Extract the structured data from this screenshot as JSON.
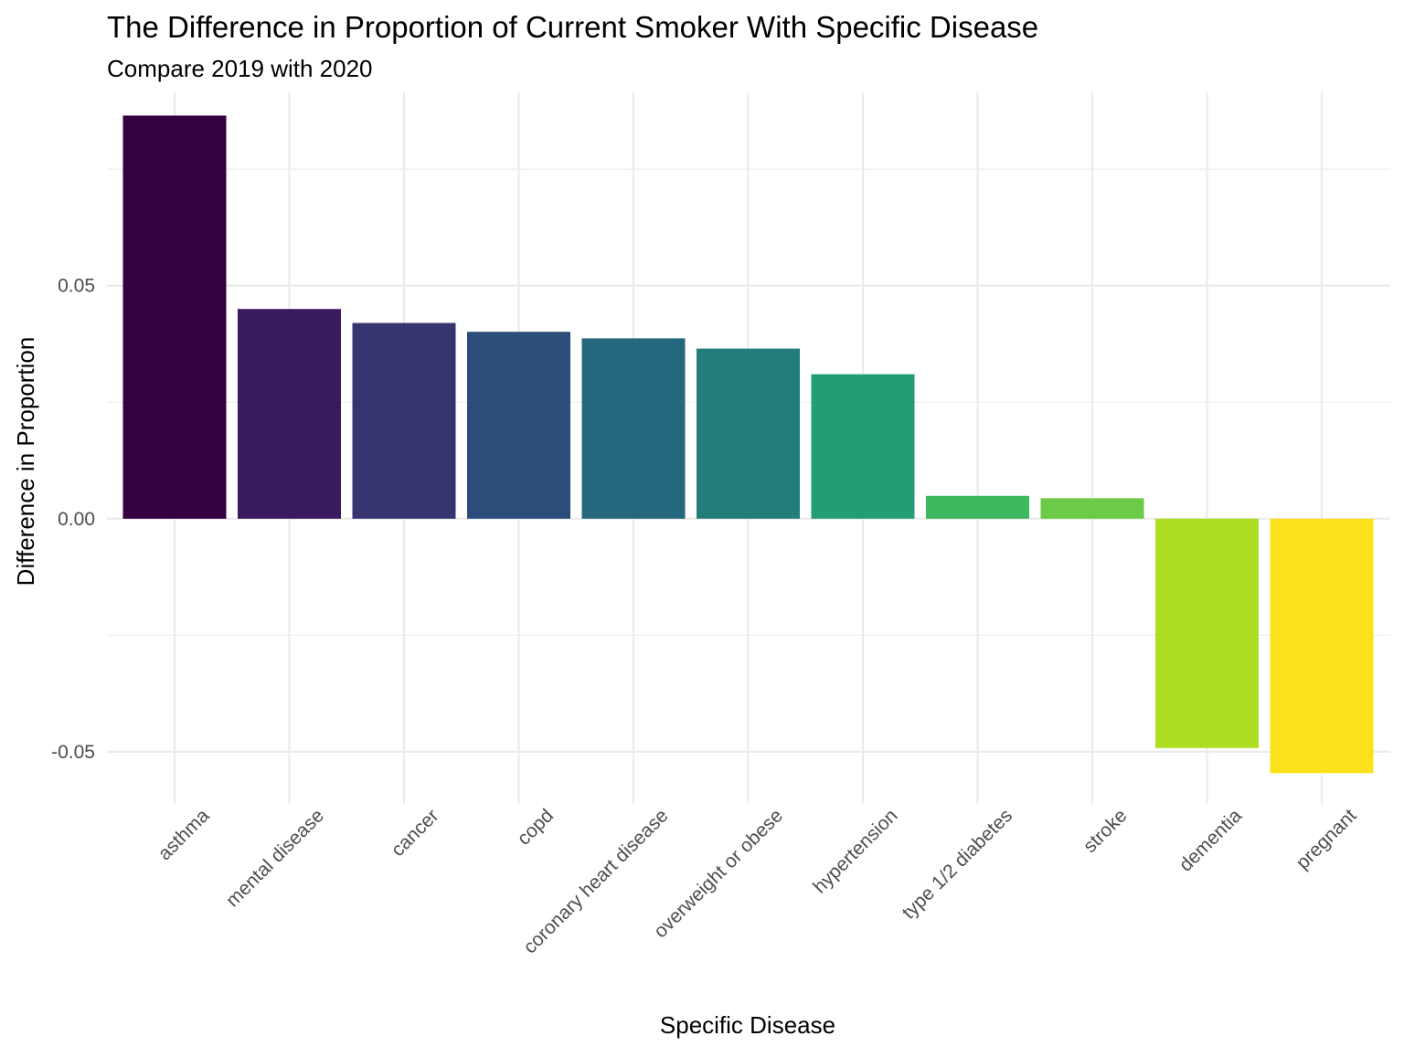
{
  "chart_data": {
    "type": "bar",
    "title": "The Difference in Proportion of Current Smoker With Specific Disease",
    "subtitle": "Compare 2019 with 2020",
    "xlabel": "Specific Disease",
    "ylabel": "Difference in Proportion",
    "categories": [
      "asthma",
      "mental disease",
      "cancer",
      "copd",
      "coronary heart disease",
      "overweight or obese",
      "hypertension",
      "type 1/2 diabetes",
      "stroke",
      "dementia",
      "pregnant"
    ],
    "values": [
      0.0865,
      0.045,
      0.042,
      0.0401,
      0.0387,
      0.0365,
      0.031,
      0.0049,
      0.0044,
      -0.0492,
      -0.0546
    ],
    "colors": [
      "#350040",
      "#3a1a5e",
      "#35346f",
      "#2c4d79",
      "#25677c",
      "#237e7b",
      "#239e74",
      "#3db85d",
      "#6bca46",
      "#addd22",
      "#fce21c"
    ],
    "yticks": [
      {
        "value": -0.05,
        "label": "-0.05"
      },
      {
        "value": 0,
        "label": "0.00"
      },
      {
        "value": 0.05,
        "label": "0.05"
      }
    ],
    "y_minor_ticks": [
      -0.025,
      0.025,
      0.075
    ],
    "ylim": [
      -0.0612,
      0.0915
    ],
    "grid": true,
    "legend": "none"
  }
}
